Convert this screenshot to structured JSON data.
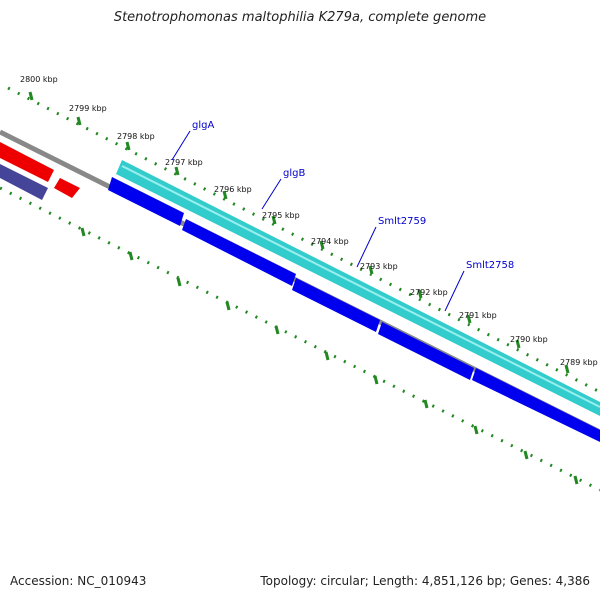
{
  "title": "Stenotrophomonas maltophilia K279a, complete genome",
  "footer": {
    "accession": "Accession: NC_010943",
    "summary": "Topology: circular; Length: 4,851,126 bp; Genes: 4,386"
  },
  "genome_map": {
    "tick_labels": [
      "2800 kbp",
      "2799 kbp",
      "2798 kbp",
      "2797 kbp",
      "2796 kbp",
      "2795 kbp",
      "2794 kbp",
      "2793 kbp",
      "2792 kbp",
      "2791 kbp",
      "2790 kbp",
      "2789 kbp"
    ],
    "gene_labels": [
      "glgA",
      "glgB",
      "Smlt2759",
      "Smlt2758"
    ],
    "colors": {
      "forward_cds": "#33cccc",
      "reverse_cds": "#0000ee",
      "rna": "#ee0000",
      "other": "#444499",
      "backbone": "#888888",
      "ticks": "#228822",
      "gene_label": "#0000cc"
    }
  }
}
